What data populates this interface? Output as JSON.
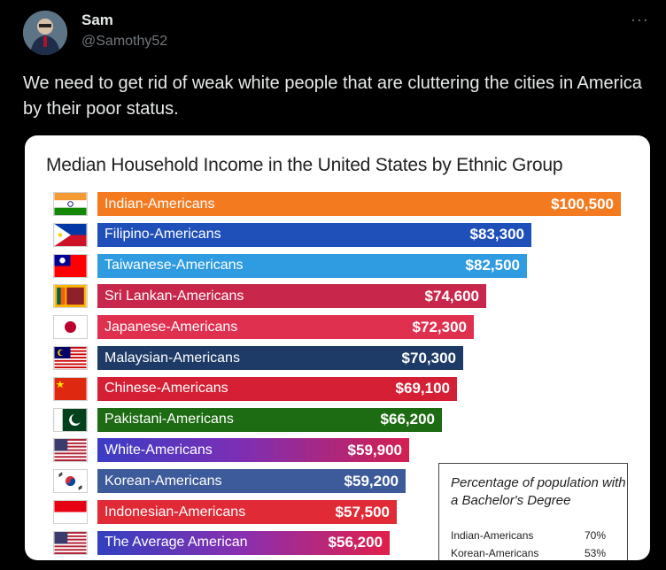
{
  "tweet": {
    "name": "Sam",
    "handle": "@Samothy52",
    "more_icon": "···",
    "text": "We need to get rid of weak white people that are cluttering the cities in America by their poor status."
  },
  "chart_data": {
    "type": "bar",
    "title": "Median Household Income in the United States  by Ethnic Group",
    "xlim": [
      0,
      100500
    ],
    "categories": [
      "Indian-Americans",
      "Filipino-Americans",
      "Taiwanese-Americans",
      "Sri Lankan-Americans",
      "Japanese-Americans",
      "Malaysian-Americans",
      "Chinese-Americans",
      "Pakistani-Americans",
      "White-Americans",
      "Korean-Americans",
      "Indonesian-Americans",
      "The Average American"
    ],
    "values": [
      100500,
      83300,
      82500,
      74600,
      72300,
      70300,
      69100,
      66200,
      59900,
      59200,
      57500,
      56200
    ],
    "value_labels": [
      "$100,500",
      "$83,300",
      "$82,500",
      "$74,600",
      "$72,300",
      "$70,300",
      "$69,100",
      "$66,200",
      "$59,900",
      "$59,200",
      "$57,500",
      "$56,200"
    ],
    "flags": [
      "india-flag",
      "philippines-flag",
      "taiwan-flag",
      "sri-lanka-flag",
      "japan-flag",
      "malaysia-flag",
      "china-flag",
      "pakistan-flag",
      "usa-flag",
      "south-korea-flag",
      "indonesia-flag",
      "usa-flag"
    ],
    "colors": [
      "#f47a20",
      "#1f4fb8",
      "#2f9be0",
      "#c8264a",
      "#e0304f",
      "#1e3a66",
      "#d41f34",
      "#1d6b12",
      "grad-white",
      "#3d5a9a",
      "#e02a36",
      "grad-avg"
    ],
    "inset": {
      "title": "Percentage of population with a Bachelor's Degree",
      "rows": [
        {
          "label": "Indian-Americans",
          "value": "70%"
        },
        {
          "label": "Korean-Americans",
          "value": "53%"
        }
      ]
    }
  }
}
